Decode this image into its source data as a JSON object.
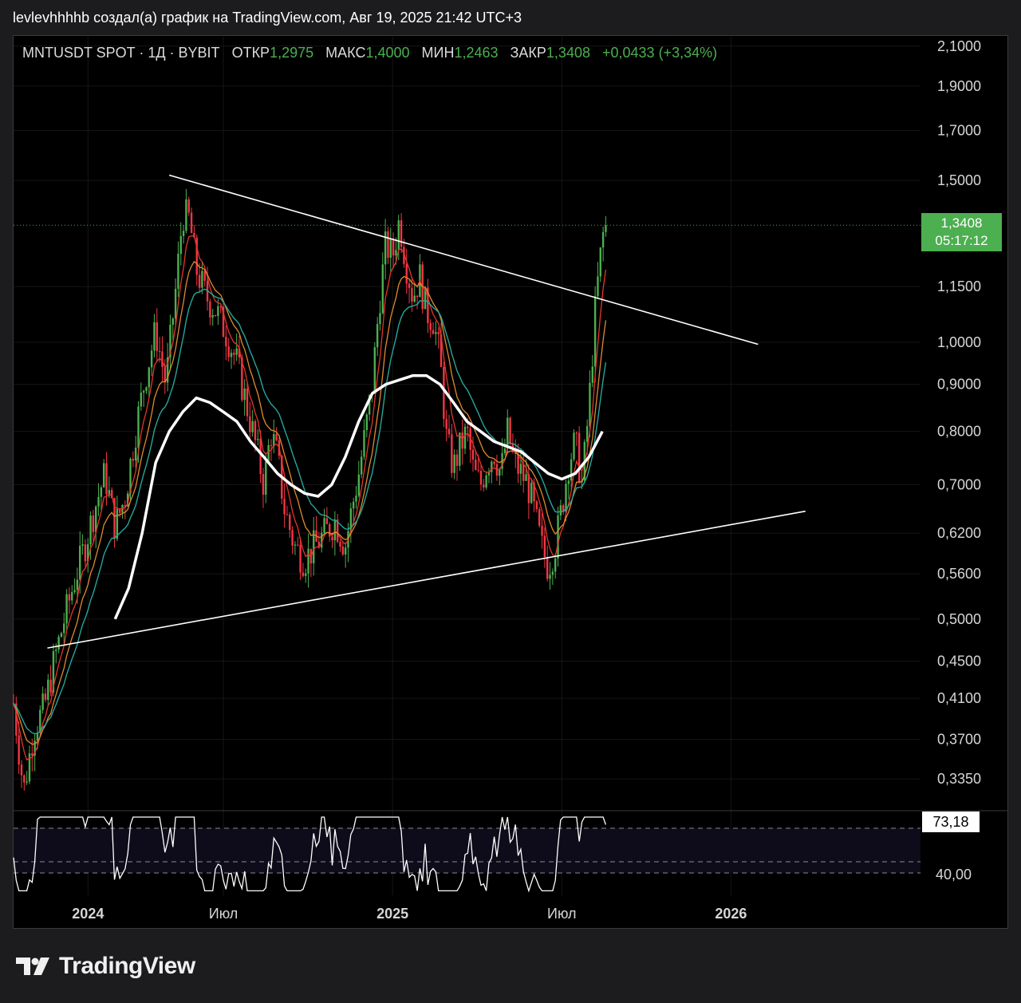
{
  "header": {
    "text": "levlevhhhhb создал(а) график на TradingView.com, Авг 19, 2025 21:42 UTC+3"
  },
  "legend": {
    "symbol": "MNTUSDT SPOT · 1Д · BYBIT",
    "open_label": "ОТКР",
    "open_value": "1,2975",
    "high_label": "МАКС",
    "high_value": "1,4000",
    "low_label": "МИН",
    "low_value": "1,2463",
    "close_label": "ЗАКР",
    "close_value": "1,3408",
    "change": "+0,0433 (+3,34%)"
  },
  "price_tag": {
    "price": "1,3408",
    "countdown": "05:17:12"
  },
  "rsi_tag": {
    "value": "73,18"
  },
  "colors": {
    "up": "#4caf50",
    "down": "#f23645",
    "ema_fast": "#e5362d",
    "ema_mid": "#e08a2f",
    "ema_slow": "#26a69a",
    "ema_long": "#ffffff",
    "trendline": "#ffffff",
    "background": "#000000"
  },
  "branding": {
    "logo_icon": "tradingview-logo-icon",
    "logo_text": "TradingView"
  },
  "chart_data": {
    "type": "candlestick",
    "title": "MNTUSDT SPOT · 1Д · BYBIT",
    "scale": "log",
    "ylim": [
      0.31,
      2.15
    ],
    "y_ticks": [
      {
        "value": 2.1,
        "label": "2,1000"
      },
      {
        "value": 1.9,
        "label": "1,9000"
      },
      {
        "value": 1.7,
        "label": "1,7000"
      },
      {
        "value": 1.5,
        "label": "1,5000"
      },
      {
        "value": 1.15,
        "label": "1,1500"
      },
      {
        "value": 1.0,
        "label": "1,0000"
      },
      {
        "value": 0.9,
        "label": "0,9000"
      },
      {
        "value": 0.8,
        "label": "0,8000"
      },
      {
        "value": 0.7,
        "label": "0,7000"
      },
      {
        "value": 0.62,
        "label": "0,6200"
      },
      {
        "value": 0.56,
        "label": "0,5600"
      },
      {
        "value": 0.5,
        "label": "0,5000"
      },
      {
        "value": 0.45,
        "label": "0,4500"
      },
      {
        "value": 0.41,
        "label": "0,4100"
      },
      {
        "value": 0.37,
        "label": "0,3700"
      },
      {
        "value": 0.335,
        "label": "0,3350"
      }
    ],
    "x_ticks": [
      {
        "t": 0.1,
        "label": "2024"
      },
      {
        "t": 0.5,
        "label": "Июл"
      },
      {
        "t": 1.0,
        "label": "2025"
      },
      {
        "t": 1.5,
        "label": "Июл"
      },
      {
        "t": 2.0,
        "label": "2026"
      }
    ],
    "x_range": [
      -0.12,
      2.56
    ],
    "last_t": 1.63,
    "close_series": [
      [
        -0.12,
        0.405
      ],
      [
        -0.09,
        0.325
      ],
      [
        -0.06,
        0.38
      ],
      [
        -0.03,
        0.4
      ],
      [
        0.0,
        0.45
      ],
      [
        0.03,
        0.5
      ],
      [
        0.06,
        0.55
      ],
      [
        0.09,
        0.6
      ],
      [
        0.12,
        0.66
      ],
      [
        0.15,
        0.72
      ],
      [
        0.18,
        0.63
      ],
      [
        0.21,
        0.68
      ],
      [
        0.24,
        0.8
      ],
      [
        0.27,
        0.92
      ],
      [
        0.3,
        1.03
      ],
      [
        0.33,
        0.9
      ],
      [
        0.36,
        1.15
      ],
      [
        0.38,
        1.38
      ],
      [
        0.4,
        1.36
      ],
      [
        0.42,
        1.2
      ],
      [
        0.45,
        1.12
      ],
      [
        0.48,
        1.08
      ],
      [
        0.51,
        1.02
      ],
      [
        0.54,
        0.95
      ],
      [
        0.57,
        0.85
      ],
      [
        0.6,
        0.76
      ],
      [
        0.62,
        0.7
      ],
      [
        0.64,
        0.8
      ],
      [
        0.66,
        0.75
      ],
      [
        0.68,
        0.66
      ],
      [
        0.71,
        0.6
      ],
      [
        0.74,
        0.58
      ],
      [
        0.77,
        0.6
      ],
      [
        0.8,
        0.62
      ],
      [
        0.83,
        0.64
      ],
      [
        0.86,
        0.6
      ],
      [
        0.88,
        0.66
      ],
      [
        0.9,
        0.72
      ],
      [
        0.92,
        0.8
      ],
      [
        0.94,
        0.9
      ],
      [
        0.96,
        1.1
      ],
      [
        0.98,
        1.28
      ],
      [
        1.0,
        1.24
      ],
      [
        1.02,
        1.36
      ],
      [
        1.04,
        1.22
      ],
      [
        1.06,
        1.12
      ],
      [
        1.08,
        1.18
      ],
      [
        1.1,
        1.08
      ],
      [
        1.12,
        1.06
      ],
      [
        1.14,
        0.96
      ],
      [
        1.16,
        0.78
      ],
      [
        1.18,
        0.73
      ],
      [
        1.2,
        0.77
      ],
      [
        1.22,
        0.8
      ],
      [
        1.24,
        0.72
      ],
      [
        1.26,
        0.7
      ],
      [
        1.28,
        0.74
      ],
      [
        1.3,
        0.76
      ],
      [
        1.32,
        0.72
      ],
      [
        1.34,
        0.8
      ],
      [
        1.36,
        0.74
      ],
      [
        1.38,
        0.72
      ],
      [
        1.4,
        0.7
      ],
      [
        1.42,
        0.65
      ],
      [
        1.44,
        0.6
      ],
      [
        1.46,
        0.57
      ],
      [
        1.48,
        0.6
      ],
      [
        1.5,
        0.66
      ],
      [
        1.52,
        0.74
      ],
      [
        1.54,
        0.78
      ],
      [
        1.56,
        0.7
      ],
      [
        1.58,
        0.85
      ],
      [
        1.6,
        1.1
      ],
      [
        1.62,
        1.3
      ],
      [
        1.63,
        1.3408
      ]
    ],
    "series": [
      {
        "name": "",
        "type": "line",
        "color": "#ffffff",
        "values": [
          [
            0.18,
            0.5
          ],
          [
            0.22,
            0.54
          ],
          [
            0.26,
            0.62
          ],
          [
            0.3,
            0.74
          ],
          [
            0.34,
            0.8
          ],
          [
            0.38,
            0.84
          ],
          [
            0.42,
            0.87
          ],
          [
            0.46,
            0.86
          ],
          [
            0.5,
            0.84
          ],
          [
            0.54,
            0.82
          ],
          [
            0.58,
            0.78
          ],
          [
            0.62,
            0.75
          ],
          [
            0.66,
            0.72
          ],
          [
            0.7,
            0.7
          ],
          [
            0.74,
            0.685
          ],
          [
            0.78,
            0.68
          ],
          [
            0.82,
            0.7
          ],
          [
            0.86,
            0.75
          ],
          [
            0.9,
            0.82
          ],
          [
            0.94,
            0.88
          ],
          [
            0.98,
            0.9
          ],
          [
            1.02,
            0.91
          ],
          [
            1.06,
            0.92
          ],
          [
            1.1,
            0.92
          ],
          [
            1.14,
            0.9
          ],
          [
            1.18,
            0.86
          ],
          [
            1.22,
            0.82
          ],
          [
            1.26,
            0.8
          ],
          [
            1.3,
            0.78
          ],
          [
            1.34,
            0.77
          ],
          [
            1.38,
            0.76
          ],
          [
            1.42,
            0.74
          ],
          [
            1.46,
            0.72
          ],
          [
            1.5,
            0.71
          ],
          [
            1.54,
            0.72
          ],
          [
            1.58,
            0.75
          ],
          [
            1.62,
            0.8
          ]
        ]
      }
    ],
    "trendlines": [
      {
        "from": [
          0.34,
          1.52
        ],
        "to": [
          2.08,
          0.995
        ]
      },
      {
        "from": [
          -0.02,
          0.465
        ],
        "to": [
          2.22,
          0.655
        ]
      }
    ],
    "last_price": 1.3408,
    "rsi": {
      "value": 73.18,
      "levels": [
        {
          "value": 70,
          "label": ""
        },
        {
          "value": 40,
          "label": "40,00"
        },
        {
          "value": 30,
          "label": ""
        }
      ]
    }
  }
}
